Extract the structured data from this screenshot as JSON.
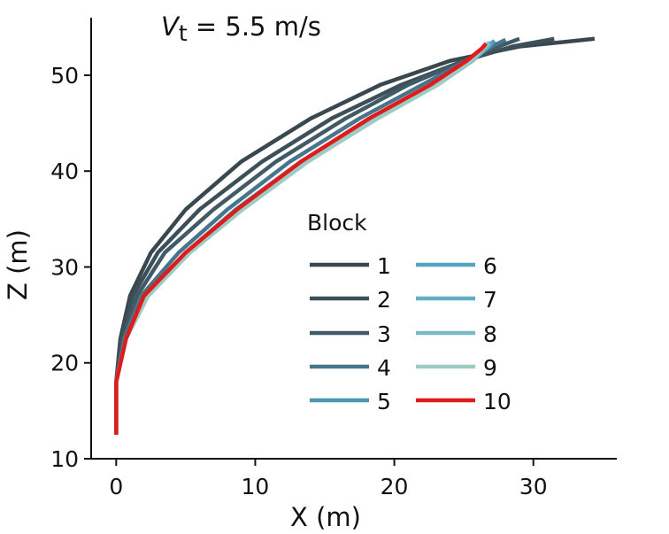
{
  "chart_data": {
    "type": "line",
    "title_var": "V",
    "title_sub": "t",
    "title_rest": " = 5.5 m/s",
    "xlabel": "X (m)",
    "ylabel": "Z (m)",
    "xlim": [
      -1.8,
      36
    ],
    "ylim": [
      10,
      56
    ],
    "x_ticks": [
      0,
      10,
      20,
      30
    ],
    "y_ticks": [
      10,
      20,
      30,
      40,
      50
    ],
    "grid": false,
    "legend": {
      "title": "Block",
      "placement": "center-right",
      "columns": 2
    },
    "series": [
      {
        "name": "1",
        "color": "#39474f",
        "x": [
          0.0,
          0.0,
          0.3,
          1.0,
          2.5,
          5.0,
          9.0,
          14.0,
          19.0,
          24.0,
          29.0,
          34.4
        ],
        "y": [
          12.5,
          18.0,
          22.5,
          27.0,
          31.5,
          36.0,
          41.0,
          45.5,
          49.0,
          51.5,
          53.0,
          53.8
        ]
      },
      {
        "name": "2",
        "color": "#3d4f58",
        "x": [
          0.0,
          0.0,
          0.4,
          1.2,
          3.0,
          6.0,
          10.5,
          15.5,
          20.5,
          25.0,
          28.5,
          31.5
        ],
        "y": [
          12.5,
          18.0,
          22.5,
          27.0,
          31.5,
          36.0,
          41.0,
          45.5,
          49.0,
          51.5,
          53.0,
          53.8
        ]
      },
      {
        "name": "3",
        "color": "#415a66",
        "x": [
          0.0,
          0.0,
          0.5,
          1.5,
          3.5,
          7.0,
          11.5,
          16.5,
          21.0,
          25.0,
          27.5,
          29.0
        ],
        "y": [
          12.5,
          18.0,
          22.5,
          27.0,
          31.5,
          36.0,
          41.0,
          45.5,
          49.0,
          51.5,
          53.0,
          53.8
        ]
      },
      {
        "name": "4",
        "color": "#46768b",
        "x": [
          0.0,
          0.0,
          0.6,
          1.8,
          4.5,
          8.0,
          12.5,
          17.5,
          22.0,
          25.2,
          27.0,
          28.0
        ],
        "y": [
          12.5,
          18.0,
          22.5,
          27.0,
          31.5,
          36.0,
          41.0,
          45.5,
          49.0,
          51.5,
          53.0,
          53.7
        ]
      },
      {
        "name": "5",
        "color": "#4b96ae",
        "x": [
          0.0,
          0.0,
          0.7,
          2.1,
          5.0,
          8.6,
          13.3,
          18.4,
          22.8,
          25.5,
          26.8,
          27.2
        ],
        "y": [
          12.5,
          18.0,
          22.5,
          27.0,
          31.5,
          36.0,
          41.0,
          45.5,
          49.0,
          51.5,
          53.0,
          53.6
        ]
      },
      {
        "name": "6",
        "color": "#56a4c0",
        "x": [
          0.0,
          0.0,
          0.7,
          2.2,
          5.1,
          8.8,
          13.5,
          18.6,
          23.0,
          25.6,
          26.8,
          27.0
        ],
        "y": [
          12.5,
          18.0,
          22.5,
          27.0,
          31.5,
          36.0,
          41.0,
          45.5,
          49.0,
          51.5,
          53.0,
          53.5
        ]
      },
      {
        "name": "7",
        "color": "#63aec5",
        "x": [
          0.0,
          0.0,
          0.7,
          2.2,
          5.2,
          8.9,
          13.6,
          18.7,
          23.1,
          25.6,
          26.7,
          26.9
        ],
        "y": [
          12.5,
          18.0,
          22.5,
          27.0,
          31.5,
          36.0,
          41.0,
          45.5,
          49.0,
          51.5,
          53.0,
          53.4
        ]
      },
      {
        "name": "8",
        "color": "#7ab8c8",
        "x": [
          0.0,
          0.0,
          0.7,
          2.3,
          5.3,
          9.0,
          13.7,
          18.8,
          23.1,
          25.6,
          26.6,
          26.8
        ],
        "y": [
          12.5,
          18.0,
          22.5,
          27.0,
          31.5,
          36.0,
          41.0,
          45.5,
          49.0,
          51.5,
          53.0,
          53.4
        ]
      },
      {
        "name": "9",
        "color": "#9dccc4",
        "x": [
          0.0,
          0.0,
          0.7,
          2.3,
          5.3,
          9.1,
          13.8,
          18.8,
          23.1,
          25.5,
          26.5,
          26.7
        ],
        "y": [
          12.5,
          18.0,
          22.5,
          27.0,
          31.5,
          36.0,
          41.0,
          45.5,
          49.0,
          51.5,
          53.0,
          53.3
        ]
      },
      {
        "name": "10",
        "color": "#e01b1b",
        "x": [
          0.0,
          0.0,
          0.7,
          2.0,
          5.0,
          8.7,
          13.3,
          18.2,
          22.6,
          25.2,
          26.3,
          26.6
        ],
        "y": [
          12.5,
          18.0,
          22.5,
          27.0,
          31.5,
          36.0,
          41.0,
          45.5,
          49.0,
          51.5,
          52.8,
          53.3
        ]
      }
    ]
  }
}
